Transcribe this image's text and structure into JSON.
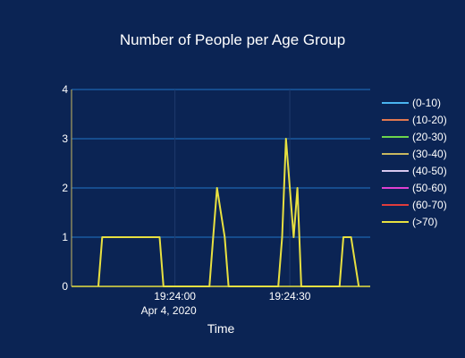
{
  "chart_data": {
    "type": "line",
    "title": "Number of People per Age Group",
    "xlabel": "Time",
    "ylabel": "",
    "x_ticks": [
      {
        "t": 0,
        "label": "19:24:00",
        "sublabel": "Apr 4, 2020"
      },
      {
        "t": 30,
        "label": "19:24:30",
        "sublabel": ""
      }
    ],
    "xlim": [
      -27,
      51
    ],
    "ylim": [
      0,
      4
    ],
    "y_ticks": [
      0,
      1,
      2,
      3,
      4
    ],
    "grid": true,
    "legend_position": "right",
    "background": "#0b2454",
    "grid_color": "#1a5aa0",
    "series": [
      {
        "name": "(0-10)",
        "color": "#4ab4f0",
        "points": []
      },
      {
        "name": "(10-20)",
        "color": "#e07850",
        "points": []
      },
      {
        "name": "(20-30)",
        "color": "#6cd44c",
        "points": []
      },
      {
        "name": "(30-40)",
        "color": "#c8b860",
        "points": []
      },
      {
        "name": "(40-50)",
        "color": "#d8c8f0",
        "points": []
      },
      {
        "name": "(50-60)",
        "color": "#e040d0",
        "points": []
      },
      {
        "name": "(60-70)",
        "color": "#e03c3c",
        "points": []
      },
      {
        "name": "(>70)",
        "color": "#e8e040",
        "points": [
          [
            -20,
            0
          ],
          [
            -19,
            1
          ],
          [
            -4,
            1
          ],
          [
            -3,
            0
          ],
          [
            9,
            0
          ],
          [
            10,
            1
          ],
          [
            11,
            2
          ],
          [
            13,
            1
          ],
          [
            14,
            0
          ],
          [
            27,
            0
          ],
          [
            28,
            1
          ],
          [
            29,
            3
          ],
          [
            31,
            1
          ],
          [
            32,
            2
          ],
          [
            33,
            0
          ],
          [
            43,
            0
          ],
          [
            44,
            1
          ],
          [
            46,
            1
          ],
          [
            48,
            0
          ]
        ]
      }
    ]
  }
}
